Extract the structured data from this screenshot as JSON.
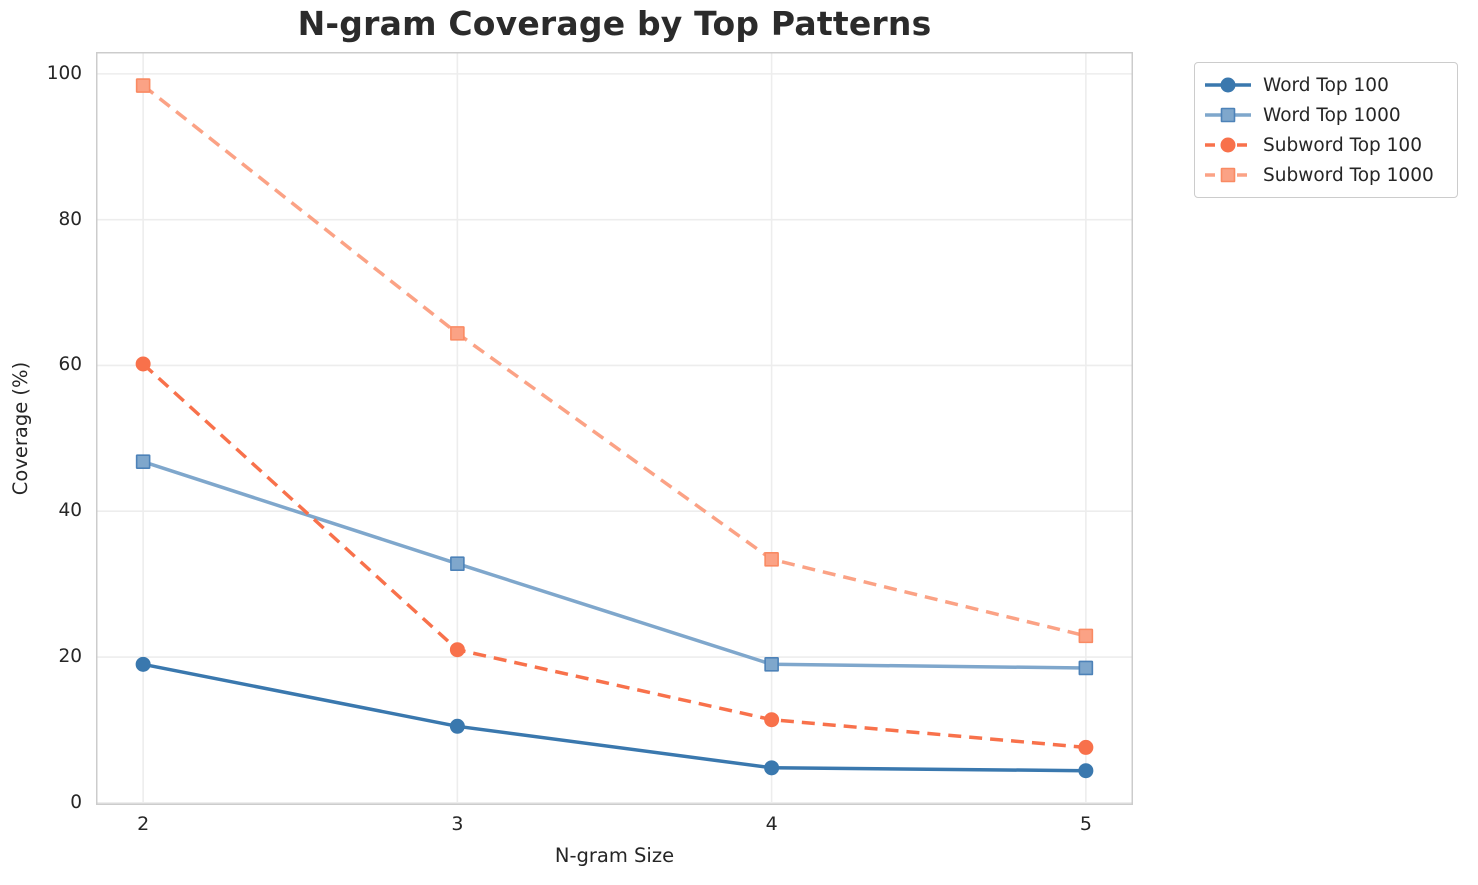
{
  "chart_data": {
    "type": "line",
    "title": "N-gram Coverage by Top Patterns",
    "xlabel": "N-gram Size",
    "ylabel": "Coverage (%)",
    "x": [
      2,
      3,
      4,
      5
    ],
    "series": [
      {
        "name": "Word Top 100",
        "values": [
          19.0,
          10.5,
          4.8,
          4.4
        ],
        "color": "#3a78ae",
        "marker": "circle",
        "marker_edge": "#3a78ae",
        "dash": false
      },
      {
        "name": "Word Top 1000",
        "values": [
          46.8,
          32.8,
          19.0,
          18.5
        ],
        "color": "#7fa7cc",
        "marker": "square",
        "marker_edge": "#4d82b8",
        "dash": false
      },
      {
        "name": "Subword Top 100",
        "values": [
          60.2,
          21.0,
          11.4,
          7.6
        ],
        "color": "#f8714b",
        "marker": "circle",
        "marker_edge": "#f8714b",
        "dash": true
      },
      {
        "name": "Subword Top 1000",
        "values": [
          98.4,
          64.4,
          33.4,
          22.9
        ],
        "color": "#fba285",
        "marker": "square",
        "marker_edge": "#f98a63",
        "dash": true
      }
    ],
    "xticks": [
      2,
      3,
      4,
      5
    ],
    "yticks": [
      0,
      20,
      40,
      60,
      80,
      100
    ],
    "xlim": [
      1.85,
      5.15
    ],
    "ylim": [
      -0.3,
      103
    ],
    "grid": true,
    "grid_color": "#ededed",
    "spine_color": "#cccccc",
    "legend_position": "outside-top-right"
  }
}
